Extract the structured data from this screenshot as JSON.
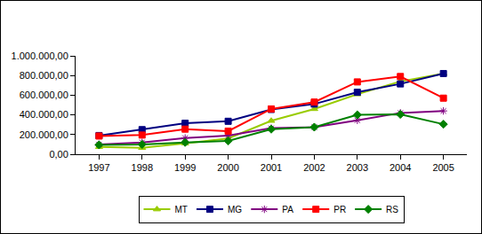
{
  "chart_data": {
    "type": "line",
    "categories": [
      "1997",
      "1998",
      "1999",
      "2000",
      "2001",
      "2002",
      "2003",
      "2004",
      "2005"
    ],
    "series": [
      {
        "name": "MT",
        "color": "#99cc00",
        "marker": "triangle",
        "line_style": "solid",
        "values": [
          75000,
          65000,
          110000,
          160000,
          340000,
          460000,
          610000,
          740000,
          820000
        ]
      },
      {
        "name": "MG",
        "color": "#000080",
        "marker": "square",
        "line_style": "solid",
        "values": [
          190000,
          250000,
          315000,
          335000,
          455000,
          510000,
          630000,
          715000,
          820000
        ]
      },
      {
        "name": "PA",
        "color": "#800080",
        "marker": "asterisk",
        "line_style": "solid",
        "values": [
          100000,
          120000,
          165000,
          190000,
          265000,
          275000,
          345000,
          420000,
          440000
        ]
      },
      {
        "name": "PR",
        "color": "#ff0000",
        "marker": "square",
        "line_style": "solid",
        "values": [
          185000,
          195000,
          255000,
          235000,
          460000,
          530000,
          735000,
          790000,
          570000
        ]
      },
      {
        "name": "RS",
        "color": "#008000",
        "marker": "diamond",
        "line_style": "solid",
        "values": [
          95000,
          100000,
          120000,
          135000,
          255000,
          275000,
          400000,
          405000,
          305000
        ]
      }
    ],
    "ylim": [
      0,
      1000000
    ],
    "yticks": [
      {
        "value": 0,
        "label": "0,00"
      },
      {
        "value": 200000,
        "label": "200.000,00"
      },
      {
        "value": 400000,
        "label": "400.000,00"
      },
      {
        "value": 600000,
        "label": "600.000,00"
      },
      {
        "value": 800000,
        "label": "800.000,00"
      },
      {
        "value": 1000000,
        "label": "1.000.000,00"
      }
    ],
    "grid": false,
    "legend": "bottom"
  }
}
